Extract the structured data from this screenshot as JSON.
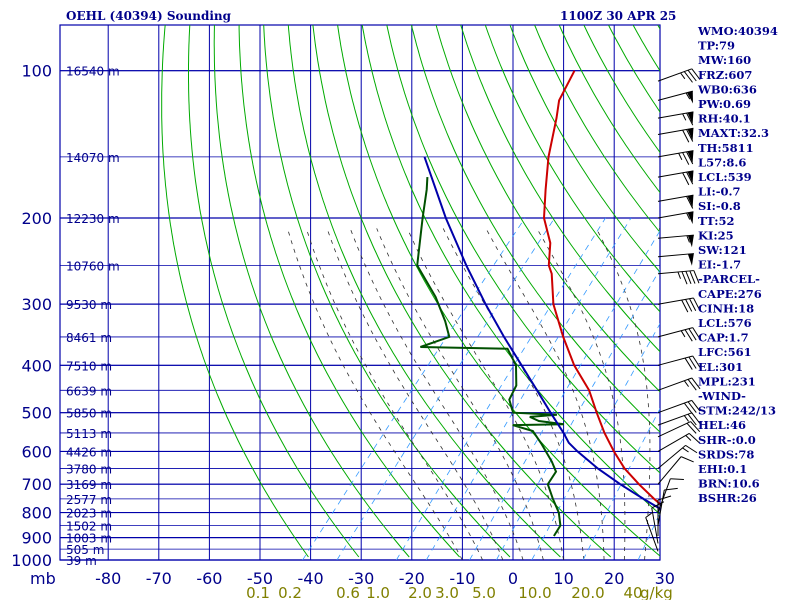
{
  "header": {
    "station": "OEHL (40394) Sounding",
    "time": "1100Z 30 APR 25"
  },
  "axis": {
    "mb_label": "mb",
    "kg_label": "g/kg"
  },
  "chart_data": {
    "type": "skew-t log-p",
    "pressure_ticks": [
      100,
      200,
      300,
      400,
      500,
      600,
      700,
      800,
      900,
      1000
    ],
    "pressure_tick_labels": [
      "100",
      "200",
      "300",
      "400",
      "500",
      "600",
      "700",
      "800",
      "900",
      "1000"
    ],
    "temperature_ticks": [
      -80,
      -70,
      -60,
      -50,
      -40,
      -30,
      -20,
      -10,
      0,
      10,
      20,
      30,
      40
    ],
    "temperature_tick_labels": [
      "-80",
      "-70",
      "-60",
      "-50",
      "-40",
      "-30",
      "-20",
      "-10",
      "0",
      "10",
      "20",
      "30",
      "40"
    ],
    "mixing_ratio_labels": [
      "0.1",
      "0.2",
      "0.6",
      "1.0",
      "2.0",
      "3.0",
      "5.0",
      "10.0",
      "20.0",
      "40"
    ],
    "height_labels": [
      {
        "p": 100,
        "label": "16540 m"
      },
      {
        "p": 150,
        "label": "14070 m"
      },
      {
        "p": 200,
        "label": "12230 m"
      },
      {
        "p": 250,
        "label": "10760 m"
      },
      {
        "p": 300,
        "label": "9530 m"
      },
      {
        "p": 350,
        "label": "8461 m"
      },
      {
        "p": 400,
        "label": "7510 m"
      },
      {
        "p": 450,
        "label": "6639 m"
      },
      {
        "p": 500,
        "label": "5850 m"
      },
      {
        "p": 550,
        "label": "5113 m"
      },
      {
        "p": 600,
        "label": "4426 m"
      },
      {
        "p": 650,
        "label": "3780 m"
      },
      {
        "p": 700,
        "label": "3169 m"
      },
      {
        "p": 750,
        "label": "2577 m"
      },
      {
        "p": 800,
        "label": "2023 m"
      },
      {
        "p": 850,
        "label": "1502 m"
      },
      {
        "p": 900,
        "label": "1003 m"
      },
      {
        "p": 950,
        "label": "505 m"
      },
      {
        "p": 1000,
        "label": "39 m"
      }
    ],
    "series": [
      {
        "name": "temperature",
        "color": "#cc0000",
        "points": [
          {
            "p": 893,
            "t": 33.8
          },
          {
            "p": 850,
            "t": 28.5
          },
          {
            "p": 800,
            "t": 23.0
          },
          {
            "p": 750,
            "t": 17.5
          },
          {
            "p": 700,
            "t": 12.0
          },
          {
            "p": 650,
            "t": 6.5
          },
          {
            "p": 600,
            "t": 1.5
          },
          {
            "p": 550,
            "t": -3.5
          },
          {
            "p": 500,
            "t": -8.5
          },
          {
            "p": 450,
            "t": -13.8
          },
          {
            "p": 400,
            "t": -21.0
          },
          {
            "p": 350,
            "t": -28.0
          },
          {
            "p": 300,
            "t": -35.5
          },
          {
            "p": 260,
            "t": -41.0
          },
          {
            "p": 250,
            "t": -43.0
          },
          {
            "p": 225,
            "t": -46.5
          },
          {
            "p": 200,
            "t": -52.0
          },
          {
            "p": 175,
            "t": -56.5
          },
          {
            "p": 150,
            "t": -61.5
          },
          {
            "p": 125,
            "t": -66.5
          },
          {
            "p": 115,
            "t": -69.0
          },
          {
            "p": 100,
            "t": -71.0
          }
        ]
      },
      {
        "name": "dewpoint",
        "color": "#005000",
        "points": [
          {
            "p": 893,
            "t": 4.0
          },
          {
            "p": 850,
            "t": 3.5
          },
          {
            "p": 800,
            "t": 1.0
          },
          {
            "p": 750,
            "t": -2.5
          },
          {
            "p": 700,
            "t": -6.0
          },
          {
            "p": 660,
            "t": -6.5
          },
          {
            "p": 630,
            "t": -9.0
          },
          {
            "p": 580,
            "t": -14.0
          },
          {
            "p": 545,
            "t": -18.0
          },
          {
            "p": 530,
            "t": -23.0
          },
          {
            "p": 528,
            "t": -13.0
          },
          {
            "p": 520,
            "t": -18.5
          },
          {
            "p": 510,
            "t": -21.0
          },
          {
            "p": 505,
            "t": -16.0
          },
          {
            "p": 500,
            "t": -25.0
          },
          {
            "p": 490,
            "t": -26.0
          },
          {
            "p": 470,
            "t": -28.0
          },
          {
            "p": 440,
            "t": -29.0
          },
          {
            "p": 400,
            "t": -32.5
          },
          {
            "p": 370,
            "t": -37.0
          },
          {
            "p": 367,
            "t": -54.5
          },
          {
            "p": 350,
            "t": -50.5
          },
          {
            "p": 325,
            "t": -54.0
          },
          {
            "p": 290,
            "t": -60.0
          },
          {
            "p": 250,
            "t": -69.0
          },
          {
            "p": 200,
            "t": -76.0
          },
          {
            "p": 175,
            "t": -80.0
          },
          {
            "p": 165,
            "t": -82.0
          }
        ]
      },
      {
        "name": "parcel",
        "color": "#0000aa",
        "points": [
          {
            "p": 893,
            "t": 33.8
          },
          {
            "p": 850,
            "t": 28.7
          },
          {
            "p": 800,
            "t": 22.3
          },
          {
            "p": 750,
            "t": 15.4
          },
          {
            "p": 700,
            "t": 8.3
          },
          {
            "p": 650,
            "t": 1.2
          },
          {
            "p": 600,
            "t": -5.7
          },
          {
            "p": 576,
            "t": -8.9
          },
          {
            "p": 550,
            "t": -11.6
          },
          {
            "p": 500,
            "t": -17.6
          },
          {
            "p": 450,
            "t": -24.1
          },
          {
            "p": 400,
            "t": -31.4
          },
          {
            "p": 350,
            "t": -39.7
          },
          {
            "p": 300,
            "t": -48.9
          },
          {
            "p": 250,
            "t": -59.3
          },
          {
            "p": 200,
            "t": -71.4
          },
          {
            "p": 150,
            "t": -86.0
          }
        ]
      }
    ],
    "wind_barbs": [
      {
        "p": 105,
        "dir": 250,
        "spd": 35
      },
      {
        "p": 115,
        "dir": 255,
        "spd": 55
      },
      {
        "p": 125,
        "dir": 260,
        "spd": 65
      },
      {
        "p": 135,
        "dir": 260,
        "spd": 70
      },
      {
        "p": 150,
        "dir": 260,
        "spd": 75
      },
      {
        "p": 165,
        "dir": 260,
        "spd": 70
      },
      {
        "p": 185,
        "dir": 260,
        "spd": 60
      },
      {
        "p": 200,
        "dir": 260,
        "spd": 55
      },
      {
        "p": 220,
        "dir": 265,
        "spd": 55
      },
      {
        "p": 240,
        "dir": 265,
        "spd": 50
      },
      {
        "p": 260,
        "dir": 265,
        "spd": 45
      },
      {
        "p": 300,
        "dir": 260,
        "spd": 40
      },
      {
        "p": 350,
        "dir": 255,
        "spd": 35
      },
      {
        "p": 400,
        "dir": 255,
        "spd": 30
      },
      {
        "p": 450,
        "dir": 250,
        "spd": 25
      },
      {
        "p": 500,
        "dir": 250,
        "spd": 30
      },
      {
        "p": 530,
        "dir": 250,
        "spd": 25
      },
      {
        "p": 560,
        "dir": 245,
        "spd": 20
      },
      {
        "p": 600,
        "dir": 240,
        "spd": 15
      },
      {
        "p": 650,
        "dir": 230,
        "spd": 15
      },
      {
        "p": 700,
        "dir": 220,
        "spd": 10
      },
      {
        "p": 800,
        "dir": 200,
        "spd": 10
      },
      {
        "p": 850,
        "dir": 190,
        "spd": 10
      },
      {
        "p": 893,
        "dir": 180,
        "spd": 10
      },
      {
        "p": 925,
        "dir": 170,
        "spd": 10
      },
      {
        "p": 960,
        "dir": 160,
        "spd": 5
      }
    ]
  },
  "indices": [
    "WMO:40394",
    "TP:79",
    "MW:160",
    "FRZ:607",
    "WB0:636",
    "PW:0.69",
    "RH:40.1",
    "MAXT:32.3",
    "TH:5811",
    "L57:8.6",
    "LCL:539",
    "LI:-0.7",
    "SI:-0.8",
    "TT:52",
    "KI:25",
    "SW:121",
    "EI:-1.7",
    "-PARCEL-",
    "CAPE:276",
    "CINH:18",
    "LCL:576",
    "CAP:1.7",
    "LFC:561",
    "EL:301",
    "MPL:231",
    "-WIND-",
    "STM:242/13",
    "HEL:46",
    "SHR-:0.0",
    "SRDS:78",
    "EHI:0.1",
    "BRN:10.6",
    "BSHR:26"
  ],
  "colors": {
    "grid": "#0000aa",
    "dry_adiabat": "#00aa00",
    "moist_adiabat": "#303030",
    "mixing_ratio": "#3399ff",
    "temperature": "#cc0000",
    "dewpoint": "#005000",
    "parcel": "#0000aa"
  }
}
